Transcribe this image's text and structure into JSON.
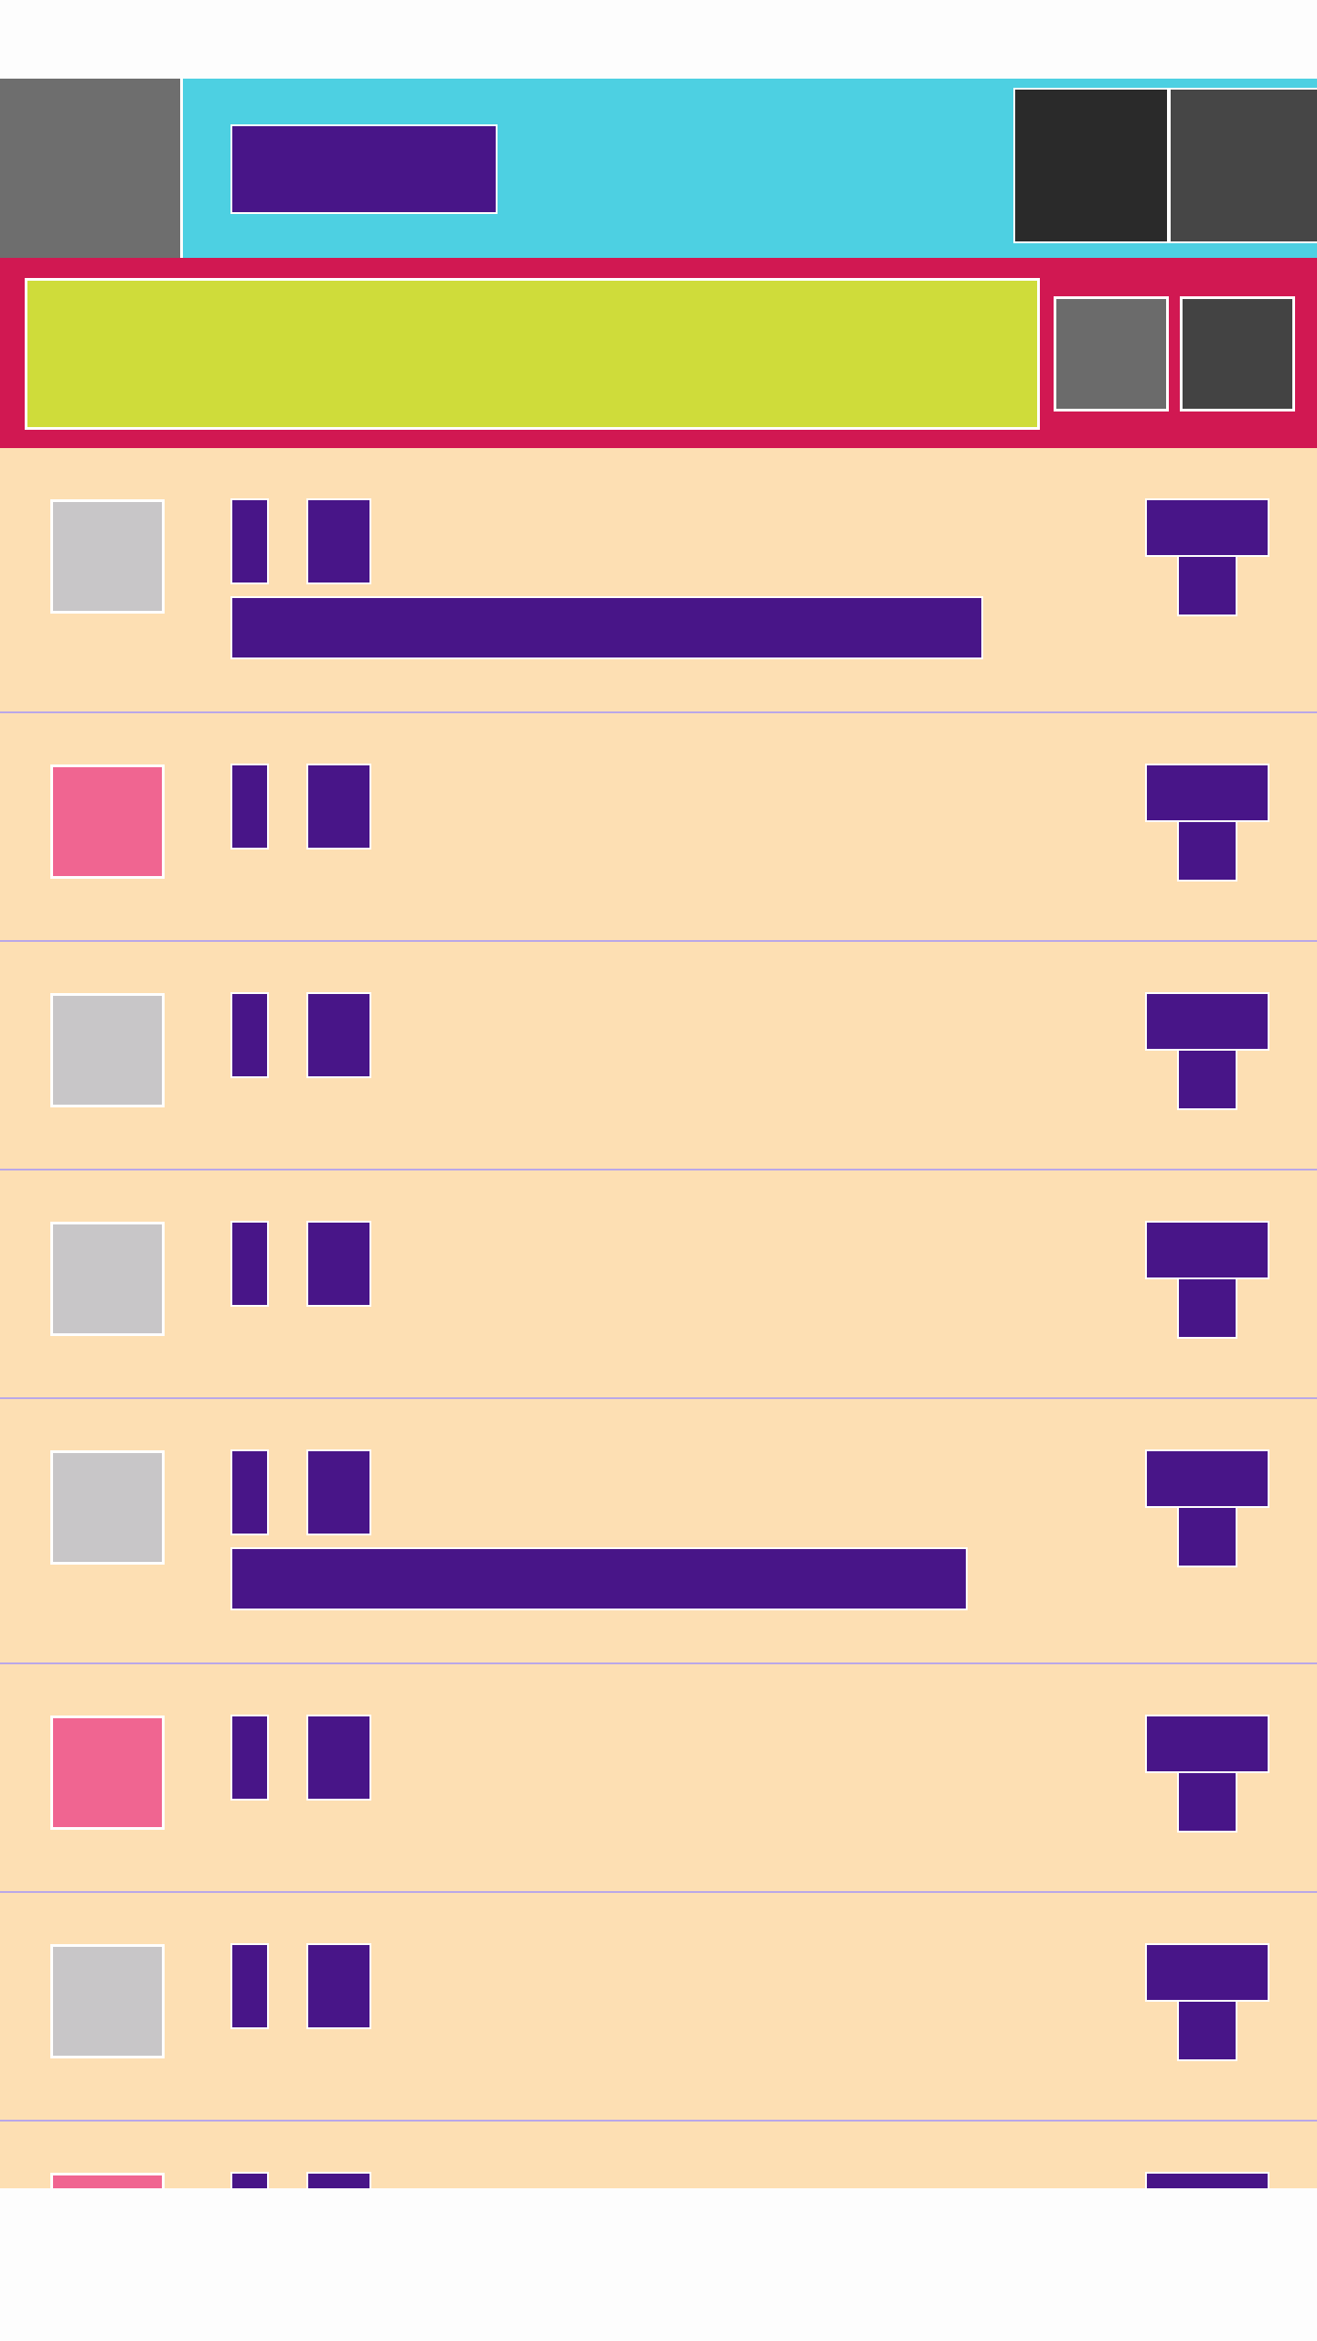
{
  "toolbar": {
    "title": "",
    "nav_icon": "menu-icon",
    "actions": [
      {
        "name": "action-1",
        "icon": "overflow-icon"
      },
      {
        "name": "action-2",
        "icon": "overflow-icon"
      }
    ]
  },
  "search": {
    "value": "",
    "placeholder": "",
    "buttons": [
      {
        "name": "search-button",
        "icon": "search-icon"
      },
      {
        "name": "filter-button",
        "icon": "filter-icon"
      }
    ]
  },
  "list": {
    "items": [
      {
        "sender": "",
        "subject": "",
        "snippet": "",
        "date": "",
        "time": "",
        "avatar_color": "#c8c6c8",
        "has_snippet": true
      },
      {
        "sender": "",
        "subject": "",
        "snippet": "",
        "date": "",
        "time": "",
        "avatar_color": "#f06591",
        "has_snippet": false
      },
      {
        "sender": "",
        "subject": "",
        "snippet": "",
        "date": "",
        "time": "",
        "avatar_color": "#c8c6c8",
        "has_snippet": false
      },
      {
        "sender": "",
        "subject": "",
        "snippet": "",
        "date": "",
        "time": "",
        "avatar_color": "#c8c6c8",
        "has_snippet": false
      },
      {
        "sender": "",
        "subject": "",
        "snippet": "",
        "date": "",
        "time": "",
        "avatar_color": "#c8c6c8",
        "has_snippet": true
      },
      {
        "sender": "",
        "subject": "",
        "snippet": "",
        "date": "",
        "time": "",
        "avatar_color": "#f06591",
        "has_snippet": false
      },
      {
        "sender": "",
        "subject": "",
        "snippet": "",
        "date": "",
        "time": "",
        "avatar_color": "#c8c6c8",
        "has_snippet": false
      },
      {
        "sender": "",
        "subject": "",
        "snippet": "",
        "date": "",
        "time": "",
        "avatar_color": "#f06591",
        "has_snippet": false
      }
    ]
  },
  "colors": {
    "toolbar_bg": "#4dd0e2",
    "search_bg": "#d11852",
    "search_field_bg": "#cfdc3a",
    "list_bg": "#fddfb3",
    "text_block": "#481588",
    "nav_button_bg": "#6e6e6e",
    "action_1_bg": "#2a2a2a",
    "action_2_bg": "#464646"
  }
}
